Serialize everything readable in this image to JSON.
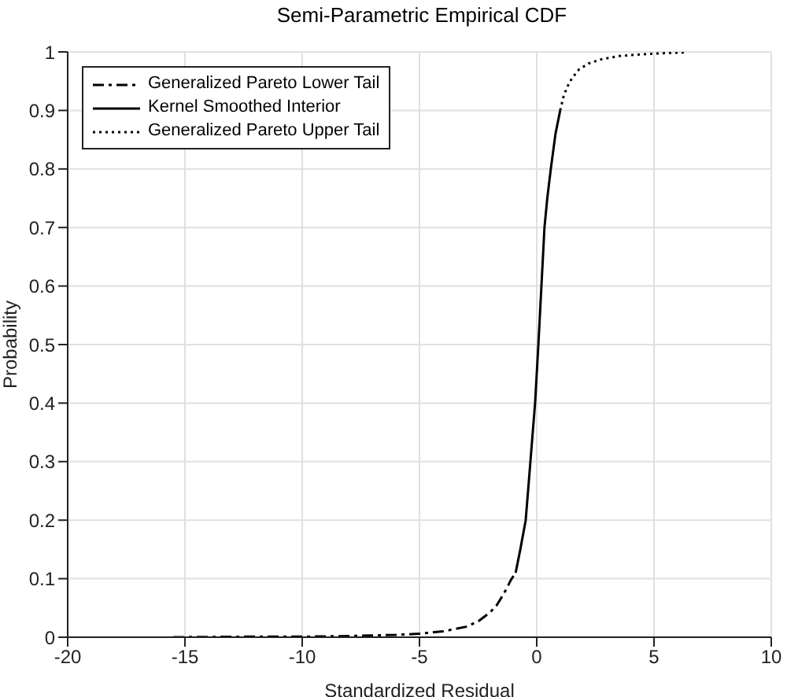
{
  "chart_data": {
    "type": "line",
    "title": "Semi-Parametric Empirical CDF",
    "xlabel": "Standardized Residual",
    "ylabel": "Probability",
    "xlim": [
      -20,
      10
    ],
    "xticks": [
      -20,
      -15,
      -10,
      -5,
      0,
      5,
      10
    ],
    "ylim": [
      0,
      1
    ],
    "yticks": [
      0,
      0.1,
      0.2,
      0.3,
      0.4,
      0.5,
      0.6,
      0.7,
      0.8,
      0.9,
      1
    ],
    "grid": true,
    "legend": "top left",
    "marker": "none",
    "series": [
      {
        "name": "Generalized Pareto Lower Tail",
        "color": "#000000",
        "line_style": "dashed",
        "x": [
          -15.5,
          -12,
          -10,
          -8,
          -6,
          -5,
          -4,
          -3,
          -2.5,
          -2,
          -1.7,
          -1.5,
          -1.3,
          -1.1,
          -0.9
        ],
        "values": [
          0.0,
          0.001,
          0.001,
          0.002,
          0.004,
          0.006,
          0.01,
          0.018,
          0.027,
          0.042,
          0.055,
          0.068,
          0.082,
          0.098,
          0.11
        ]
      },
      {
        "name": "Kernel Smoothed Interior",
        "color": "#000000",
        "line_style": "solid",
        "x": [
          -0.9,
          -0.7,
          -0.47,
          -0.27,
          -0.07,
          0.07,
          0.2,
          0.33,
          0.45,
          0.6,
          0.8,
          1.0
        ],
        "values": [
          0.11,
          0.15,
          0.2,
          0.3,
          0.4,
          0.5,
          0.6,
          0.7,
          0.75,
          0.8,
          0.86,
          0.9
        ]
      },
      {
        "name": "Generalized Pareto Upper Tail",
        "color": "#000000",
        "line_style": "dotted",
        "x": [
          1.0,
          1.15,
          1.3,
          1.5,
          1.8,
          2.2,
          2.7,
          3.5,
          4.5,
          5.5,
          6.3
        ],
        "values": [
          0.9,
          0.925,
          0.94,
          0.955,
          0.97,
          0.98,
          0.987,
          0.993,
          0.996,
          0.998,
          0.999
        ]
      }
    ]
  }
}
